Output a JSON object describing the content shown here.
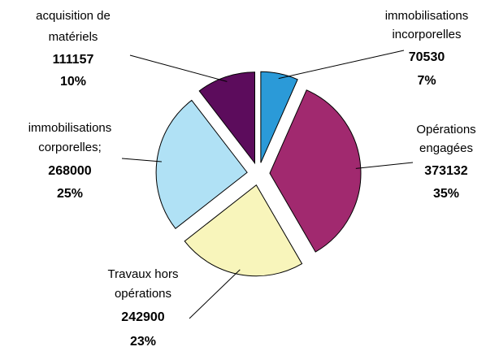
{
  "chart_data": {
    "type": "pie",
    "categories": [
      [
        "immobilisations",
        "incorporelles"
      ],
      [
        "Opérations",
        "engagées"
      ],
      [
        "Travaux hors",
        "opérations"
      ],
      [
        "immobilisations",
        "corporelles;"
      ],
      [
        "acquisition de",
        "matériels"
      ]
    ],
    "values": [
      70530,
      373132,
      242900,
      268000,
      111157
    ],
    "percent_labels": [
      "7%",
      "35%",
      "23%",
      "25%",
      "10%"
    ],
    "colors": [
      "#2b9ad8",
      "#a1296f",
      "#f8f5bb",
      "#b0e1f5",
      "#5c0c5c"
    ],
    "exploded": true
  }
}
